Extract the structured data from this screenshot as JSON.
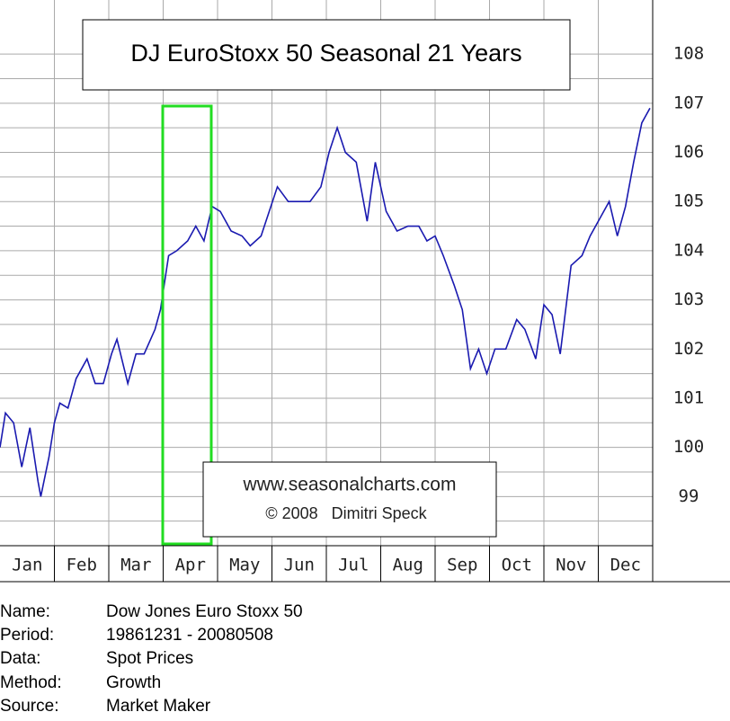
{
  "chart_data": {
    "type": "line",
    "title": "DJ EuroStoxx 50 Seasonal 21 Years",
    "annotations": [
      "www.seasonalcharts.com",
      "© 2008   Dimitri Speck"
    ],
    "categories": [
      "Jan",
      "Feb",
      "Mar",
      "Apr",
      "May",
      "Jun",
      "Jul",
      "Aug",
      "Sep",
      "Oct",
      "Nov",
      "Dec"
    ],
    "x": [
      0,
      0.1,
      0.25,
      0.4,
      0.55,
      0.7,
      0.75,
      0.9,
      1.0,
      1.1,
      1.25,
      1.4,
      1.6,
      1.75,
      1.9,
      2.05,
      2.15,
      2.35,
      2.5,
      2.65,
      2.85,
      2.95,
      3.1,
      3.25,
      3.45,
      3.6,
      3.75,
      3.9,
      4.05,
      4.25,
      4.45,
      4.6,
      4.8,
      4.95,
      5.1,
      5.3,
      5.5,
      5.7,
      5.9,
      6.05,
      6.2,
      6.35,
      6.55,
      6.75,
      6.9,
      7.1,
      7.3,
      7.5,
      7.7,
      7.85,
      8.0,
      8.15,
      8.35,
      8.5,
      8.65,
      8.8,
      8.95,
      9.1,
      9.3,
      9.5,
      9.65,
      9.85,
      10.0,
      10.15,
      10.3,
      10.5,
      10.7,
      10.85,
      11.05,
      11.2,
      11.35,
      11.5,
      11.65,
      11.8,
      11.95
    ],
    "series": [
      {
        "name": "DJ EuroStoxx 50",
        "color": "#1a1ab0",
        "values": [
          100.0,
          100.7,
          100.5,
          99.6,
          100.4,
          99.3,
          99.0,
          99.8,
          100.5,
          100.9,
          100.8,
          101.4,
          101.8,
          101.3,
          101.3,
          101.9,
          102.2,
          101.3,
          101.9,
          101.9,
          102.4,
          102.8,
          103.9,
          104.0,
          104.2,
          104.5,
          104.2,
          104.9,
          104.8,
          104.4,
          104.3,
          104.1,
          104.3,
          104.8,
          105.3,
          105.0,
          105.0,
          105.0,
          105.3,
          106.0,
          106.5,
          106.0,
          105.8,
          104.6,
          105.8,
          104.8,
          104.4,
          104.5,
          104.5,
          104.2,
          104.3,
          103.9,
          103.3,
          102.8,
          101.6,
          102.0,
          101.5,
          102.0,
          102.0,
          102.6,
          102.4,
          101.8,
          102.9,
          102.7,
          101.9,
          103.7,
          103.9,
          104.3,
          104.7,
          105.0,
          104.3,
          104.9,
          105.8,
          106.6,
          106.9
        ]
      }
    ],
    "xlim": [
      0,
      12
    ],
    "ylim": [
      98,
      109.1
    ],
    "yticks": [
      99,
      100,
      101,
      102,
      103,
      104,
      105,
      106,
      107,
      108
    ],
    "grid": true
  },
  "info": {
    "rows": [
      [
        "Name:",
        "Dow Jones Euro Stoxx 50"
      ],
      [
        "Period:",
        "19861231 - 20080508"
      ],
      [
        "Data:",
        "Spot Prices"
      ],
      [
        "Method:",
        "Growth"
      ],
      [
        "Source:",
        "Market Maker"
      ]
    ]
  }
}
